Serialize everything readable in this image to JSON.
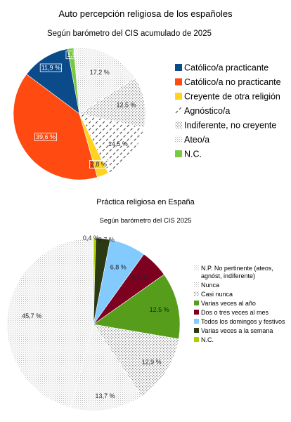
{
  "chart_data": [
    {
      "type": "pie",
      "title": "Auto percepción religiosa de los españoles",
      "subtitle": "Según barómetro del CIS acumulado de 2025",
      "series": [
        {
          "name": "Católico/a practicante",
          "value": 11.9,
          "label": "11,9 %",
          "color": "#0c4b8a",
          "pattern": "solid"
        },
        {
          "name": "Católico/a no practicante",
          "value": 39.6,
          "label": "39,6 %",
          "color": "#ff4a12",
          "pattern": "solid"
        },
        {
          "name": "Creyente de otra religión",
          "value": 2.8,
          "label": "2,8 %",
          "color": "#ffd320",
          "pattern": "solid"
        },
        {
          "name": "Agnóstico/a",
          "value": 14.5,
          "label": "14,5 %",
          "color": "#333333",
          "pattern": "dash"
        },
        {
          "name": "Indiferente, no creyente",
          "value": 12.5,
          "label": "12,5 %",
          "color": "#888888",
          "pattern": "dots"
        },
        {
          "name": "Ateo/a",
          "value": 17.2,
          "label": "17,2 %",
          "color": "#aaaaaa",
          "pattern": "fine"
        },
        {
          "name": "N.C.",
          "value": 1.5,
          "label": "1,5",
          "color": "#7ac943",
          "pattern": "solid"
        }
      ]
    },
    {
      "type": "pie",
      "title": "Práctica religiosa en España",
      "subtitle": "Según barómetro del CIS 2025",
      "series": [
        {
          "name": "N.C.",
          "value": 0.4,
          "label": "0,4 %",
          "color": "#aecf00",
          "pattern": "solid"
        },
        {
          "name": "Varias veces a la semana",
          "value": 2.7,
          "label": "2,7 %",
          "color": "#2b3a12",
          "pattern": "solid"
        },
        {
          "name": "Todos los domingos y festivos",
          "value": 6.8,
          "label": "6,8 %",
          "color": "#83caff",
          "pattern": "solid"
        },
        {
          "name": "Dos o tres veces al mes",
          "value": 5.3,
          "label": "5,3 %",
          "color": "#7e0021",
          "pattern": "solid"
        },
        {
          "name": "Varias veces al año",
          "value": 12.5,
          "label": "12,5 %",
          "color": "#579d1c",
          "pattern": "solid"
        },
        {
          "name": "Casi nunca",
          "value": 12.9,
          "label": "12,9 %",
          "color": "#999999",
          "pattern": "dots"
        },
        {
          "name": "Nunca",
          "value": 13.7,
          "label": "13,7 %",
          "color": "#aaaaaa",
          "pattern": "fine"
        },
        {
          "name": "N.P. No pertinente (ateos, agnóst, indiferente)",
          "value": 45.7,
          "label": "45,7 %",
          "color": "#bbbbbb",
          "pattern": "fine"
        }
      ],
      "legend": [
        {
          "text": [
            "N.P. No pertinente (ateos,",
            "agnóst, indiferente)"
          ],
          "series": 7
        },
        {
          "text": [
            "Nunca"
          ],
          "series": 6
        },
        {
          "text": [
            "Casi nunca"
          ],
          "series": 5
        },
        {
          "text": [
            "Varias veces al año"
          ],
          "series": 4
        },
        {
          "text": [
            "Dos o tres veces al mes"
          ],
          "series": 3
        },
        {
          "text": [
            "Todos los domingos y festivos"
          ],
          "series": 2
        },
        {
          "text": [
            "Varias veces a la semana"
          ],
          "series": 1
        },
        {
          "text": [
            "N.C."
          ],
          "series": 0
        }
      ]
    }
  ]
}
